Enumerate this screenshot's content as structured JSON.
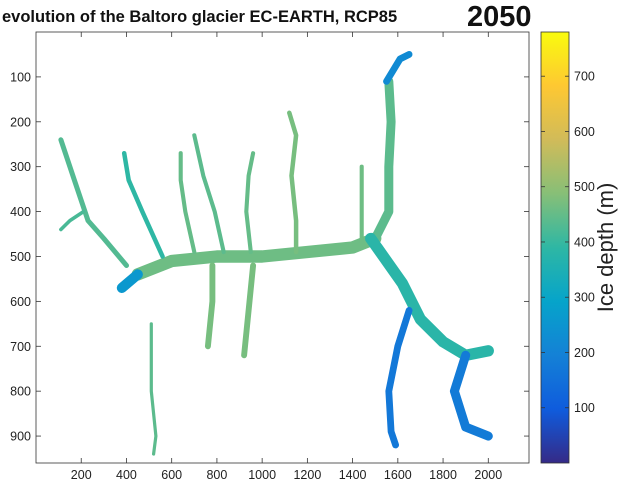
{
  "title": "evolution of the Baltoro glacier  EC-EARTH, RCP85",
  "year_label": "2050",
  "chart_data": {
    "type": "heatmap",
    "title": "evolution of the Baltoro glacier  EC-EARTH, RCP85",
    "annotation": "2050",
    "xlabel": "",
    "ylabel": "",
    "x_ticks": [
      200,
      400,
      600,
      800,
      1000,
      1200,
      1400,
      1600,
      1800,
      2000
    ],
    "y_ticks": [
      100,
      200,
      300,
      400,
      500,
      600,
      700,
      800,
      900
    ],
    "xlim": [
      0,
      2180
    ],
    "ylim": [
      960,
      0
    ],
    "y_reversed": true,
    "grid": false,
    "colorbar": {
      "label": "Ice depth (m)",
      "range": [
        0,
        780
      ],
      "ticks": [
        100,
        200,
        300,
        400,
        500,
        600,
        700
      ],
      "colormap": "parula",
      "position": "right"
    },
    "colormap_stops": [
      "#352a87",
      "#0f5cdd",
      "#1481d6",
      "#06a4ca",
      "#2eb7a4",
      "#87bf77",
      "#d1bb59",
      "#fec832",
      "#f9fb0e"
    ],
    "series": [
      {
        "branches": [
          {
            "points": [
              [
                450,
                540
              ],
              [
                600,
                510
              ],
              [
                800,
                500
              ],
              [
                1000,
                500
              ],
              [
                1200,
                490
              ],
              [
                1400,
                480
              ],
              [
                1500,
                460
              ]
            ],
            "width": 55,
            "depth": 460
          },
          {
            "points": [
              [
                1500,
                460
              ],
              [
                1560,
                400
              ],
              [
                1560,
                300
              ],
              [
                1570,
                200
              ],
              [
                1560,
                110
              ]
            ],
            "width": 40,
            "depth": 440
          },
          {
            "points": [
              [
                1550,
                110
              ],
              [
                1610,
                60
              ],
              [
                1650,
                50
              ]
            ],
            "width": 30,
            "depth": 220
          },
          {
            "points": [
              [
                1480,
                460
              ],
              [
                1620,
                560
              ],
              [
                1700,
                640
              ],
              [
                1800,
                690
              ],
              [
                1900,
                720
              ],
              [
                2000,
                710
              ]
            ],
            "width": 50,
            "depth": 380
          },
          {
            "points": [
              [
                1900,
                720
              ],
              [
                1850,
                800
              ],
              [
                1900,
                880
              ],
              [
                2000,
                900
              ]
            ],
            "width": 40,
            "depth": 180
          },
          {
            "points": [
              [
                1650,
                620
              ],
              [
                1600,
                700
              ],
              [
                1560,
                800
              ],
              [
                1570,
                890
              ],
              [
                1590,
                920
              ]
            ],
            "width": 30,
            "depth": 170
          },
          {
            "points": [
              [
                450,
                540
              ],
              [
                380,
                570
              ]
            ],
            "width": 45,
            "depth": 260
          },
          {
            "points": [
              [
                400,
                520
              ],
              [
                300,
                460
              ],
              [
                230,
                420
              ],
              [
                170,
                330
              ],
              [
                110,
                240
              ]
            ],
            "width": 22,
            "depth": 430
          },
          {
            "points": [
              [
                210,
                400
              ],
              [
                150,
                420
              ],
              [
                110,
                440
              ]
            ],
            "width": 16,
            "depth": 420
          },
          {
            "points": [
              [
                560,
                500
              ],
              [
                470,
                400
              ],
              [
                410,
                330
              ],
              [
                390,
                270
              ]
            ],
            "width": 20,
            "depth": 390
          },
          {
            "points": [
              [
                700,
                490
              ],
              [
                660,
                400
              ],
              [
                640,
                330
              ],
              [
                640,
                270
              ]
            ],
            "width": 18,
            "depth": 450
          },
          {
            "points": [
              [
                830,
                490
              ],
              [
                790,
                400
              ],
              [
                740,
                320
              ],
              [
                700,
                230
              ]
            ],
            "width": 18,
            "depth": 440
          },
          {
            "points": [
              [
                950,
                490
              ],
              [
                930,
                400
              ],
              [
                940,
                320
              ],
              [
                960,
                270
              ]
            ],
            "width": 18,
            "depth": 450
          },
          {
            "points": [
              [
                1150,
                490
              ],
              [
                1150,
                420
              ],
              [
                1130,
                320
              ],
              [
                1150,
                230
              ],
              [
                1120,
                180
              ]
            ],
            "width": 20,
            "depth": 470
          },
          {
            "points": [
              [
                1440,
                470
              ],
              [
                1440,
                390
              ],
              [
                1440,
                300
              ]
            ],
            "width": 18,
            "depth": 460
          },
          {
            "points": [
              [
                780,
                520
              ],
              [
                780,
                600
              ],
              [
                760,
                700
              ]
            ],
            "width": 26,
            "depth": 470
          },
          {
            "points": [
              [
                960,
                520
              ],
              [
                940,
                620
              ],
              [
                920,
                720
              ]
            ],
            "width": 26,
            "depth": 470
          },
          {
            "points": [
              [
                510,
                650
              ],
              [
                510,
                800
              ],
              [
                530,
                900
              ],
              [
                520,
                940
              ]
            ],
            "width": 14,
            "depth": 440
          }
        ]
      }
    ]
  }
}
